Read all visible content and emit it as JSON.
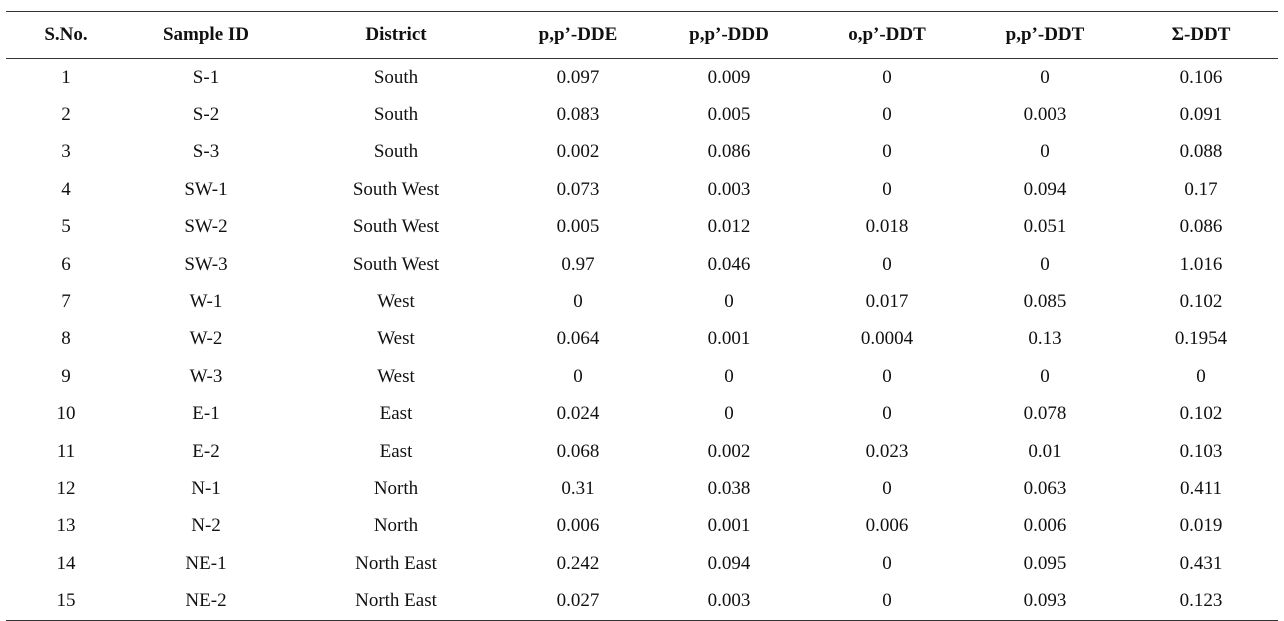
{
  "table": {
    "headers": [
      "S.No.",
      "Sample ID",
      "District",
      "p,p’-DDE",
      "p,p’-DDD",
      "o,p’-DDT",
      "p,p’-DDT",
      "Σ-DDT"
    ],
    "rows": [
      [
        "1",
        "S-1",
        "South",
        "0.097",
        "0.009",
        "0",
        "0",
        "0.106"
      ],
      [
        "2",
        "S-2",
        "South",
        "0.083",
        "0.005",
        "0",
        "0.003",
        "0.091"
      ],
      [
        "3",
        "S-3",
        "South",
        "0.002",
        "0.086",
        "0",
        "0",
        "0.088"
      ],
      [
        "4",
        "SW-1",
        "South West",
        "0.073",
        "0.003",
        "0",
        "0.094",
        "0.17"
      ],
      [
        "5",
        "SW-2",
        "South West",
        "0.005",
        "0.012",
        "0.018",
        "0.051",
        "0.086"
      ],
      [
        "6",
        "SW-3",
        "South West",
        "0.97",
        "0.046",
        "0",
        "0",
        "1.016"
      ],
      [
        "7",
        "W-1",
        "West",
        "0",
        "0",
        "0.017",
        "0.085",
        "0.102"
      ],
      [
        "8",
        "W-2",
        "West",
        "0.064",
        "0.001",
        "0.0004",
        "0.13",
        "0.1954"
      ],
      [
        "9",
        "W-3",
        "West",
        "0",
        "0",
        "0",
        "0",
        "0"
      ],
      [
        "10",
        "E-1",
        "East",
        "0.024",
        "0",
        "0",
        "0.078",
        "0.102"
      ],
      [
        "11",
        "E-2",
        "East",
        "0.068",
        "0.002",
        "0.023",
        "0.01",
        "0.103"
      ],
      [
        "12",
        "N-1",
        "North",
        "0.31",
        "0.038",
        "0",
        "0.063",
        "0.411"
      ],
      [
        "13",
        "N-2",
        "North",
        "0.006",
        "0.001",
        "0.006",
        "0.006",
        "0.019"
      ],
      [
        "14",
        "NE-1",
        "North East",
        "0.242",
        "0.094",
        "0",
        "0.095",
        "0.431"
      ],
      [
        "15",
        "NE-2",
        "North East",
        "0.027",
        "0.003",
        "0",
        "0.093",
        "0.123"
      ]
    ]
  }
}
